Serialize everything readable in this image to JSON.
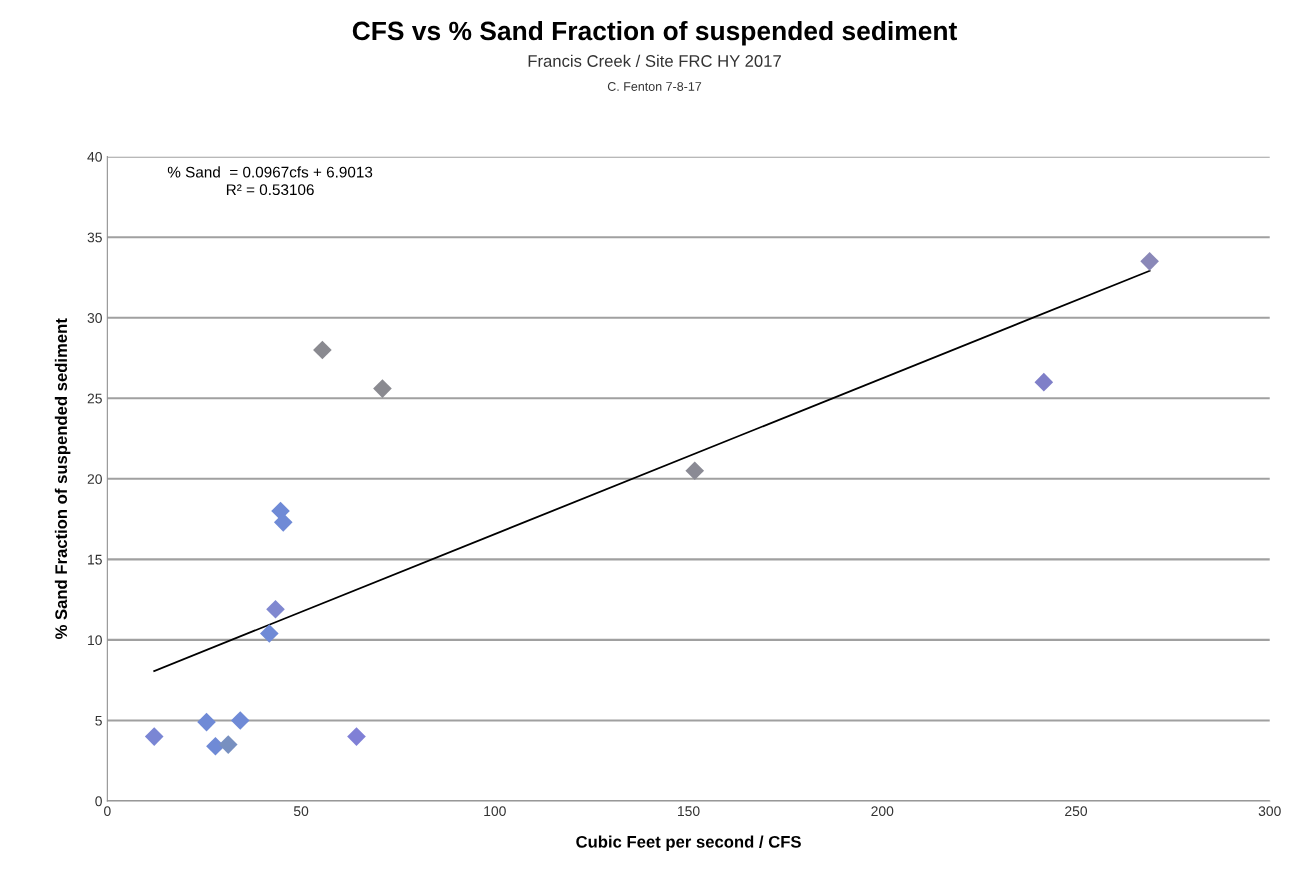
{
  "chart_data": {
    "type": "scatter",
    "title": "CFS vs % Sand Fraction of suspended sediment",
    "subtitle": "Francis Creek / Site FRC HY 2017",
    "annotations": [
      "C. Fenton 7-8-17",
      "% Sand  = 0.0967cfs + 6.9013\nR² = 0.53106"
    ],
    "xlabel": "Cubic Feet per second / CFS",
    "ylabel": "% Sand Fraction of suspended sediment",
    "xlim": [
      0,
      300
    ],
    "xticks": [
      0,
      50,
      100,
      150,
      200,
      250,
      300
    ],
    "ylim": [
      0,
      40
    ],
    "yticks": [
      0,
      5,
      10,
      15,
      20,
      25,
      30,
      35,
      40
    ],
    "grid": "y",
    "series": [
      {
        "marker": "diamond",
        "x": [
          12.1,
          25.6,
          27.9,
          31.2,
          34.3,
          41.8,
          43.4,
          44.7,
          45.4,
          64.3,
          55.5,
          71.0,
          151.6,
          241.7,
          269
        ],
        "values": [
          4.0,
          4.9,
          3.4,
          3.5,
          5.0,
          10.4,
          11.9,
          18.0,
          17.3,
          4.0,
          28.0,
          25.6,
          20.5,
          26.0,
          33.5
        ],
        "colors": [
          "#7a86d4",
          "#6f8ad6",
          "#6f8ad6",
          "#7890c0",
          "#6f8ad6",
          "#6f8ad6",
          "#8088d0",
          "#6f8ad6",
          "#6f8ad6",
          "#8080d6",
          "#8a8a90",
          "#8a8a90",
          "#8a8a94",
          "#7f7fc8",
          "#8a88b8"
        ]
      },
      {
        "type": "line",
        "marker": "none",
        "color": "#000000",
        "x": [
          12.1,
          269
        ],
        "values": [
          8.07,
          32.91
        ]
      }
    ]
  }
}
